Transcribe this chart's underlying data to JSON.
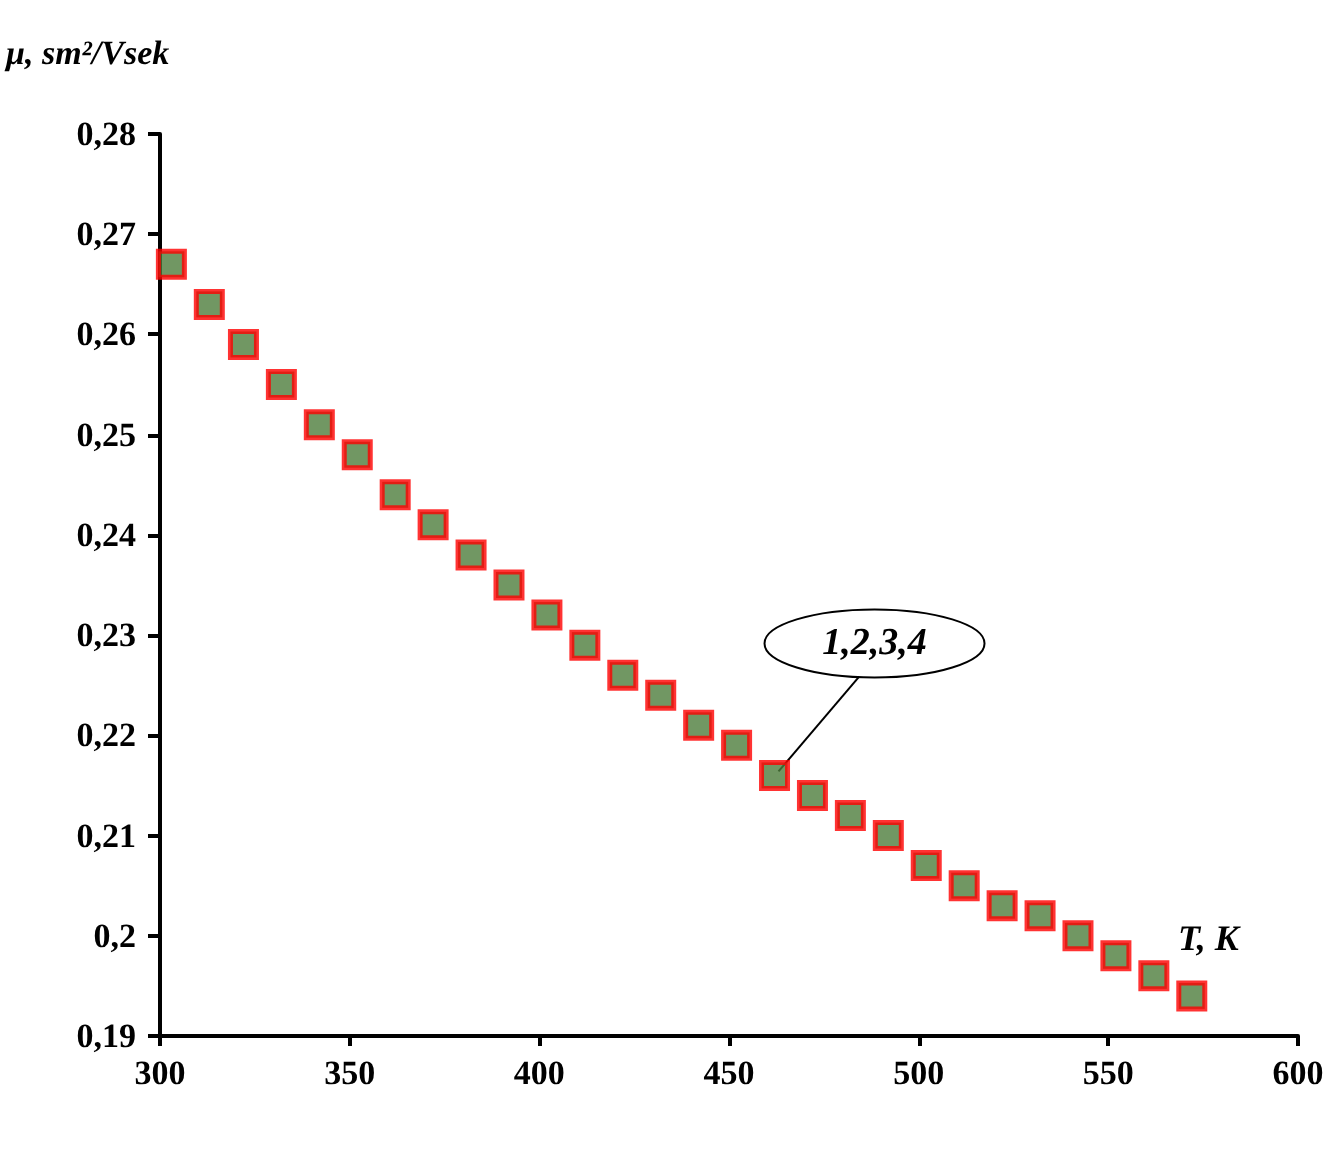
{
  "chart_data": {
    "type": "scatter",
    "xlabel": "T, K",
    "ylabel": "μ, sm²/Vsek",
    "x": [
      303,
      313,
      322,
      332,
      342,
      352,
      362,
      372,
      382,
      392,
      402,
      412,
      422,
      432,
      442,
      452,
      462,
      472,
      482,
      492,
      502,
      512,
      522,
      532,
      542,
      552,
      562,
      572
    ],
    "series": [
      {
        "color": "#ff0000",
        "values": [
          0.267,
          0.263,
          0.259,
          0.255,
          0.251,
          0.248,
          0.244,
          0.241,
          0.238,
          0.235,
          0.232,
          0.229,
          0.226,
          0.224,
          0.221,
          0.219,
          0.216,
          0.214,
          0.212,
          0.21,
          0.207,
          0.205,
          0.203,
          0.202,
          0.2,
          0.198,
          0.196,
          0.194
        ]
      }
    ],
    "annotations": [
      {
        "text": "1,2,3,4",
        "x": 462,
        "y": 0.216
      }
    ],
    "xlim": [
      300,
      600
    ],
    "xticks": [
      300,
      350,
      400,
      450,
      500,
      550,
      600
    ],
    "ylim": [
      0.19,
      0.28
    ],
    "yticks": [
      {
        "value": 0.19,
        "label": "0,19"
      },
      {
        "value": 0.2,
        "label": "0,2"
      },
      {
        "value": 0.21,
        "label": "0,21"
      },
      {
        "value": 0.22,
        "label": "0,22"
      },
      {
        "value": 0.23,
        "label": "0,23"
      },
      {
        "value": 0.24,
        "label": "0,24"
      },
      {
        "value": 0.25,
        "label": "0,25"
      },
      {
        "value": 0.26,
        "label": "0,26"
      },
      {
        "value": 0.27,
        "label": "0,27"
      },
      {
        "value": 0.28,
        "label": "0,28"
      }
    ],
    "marker": "square",
    "grid": false
  }
}
